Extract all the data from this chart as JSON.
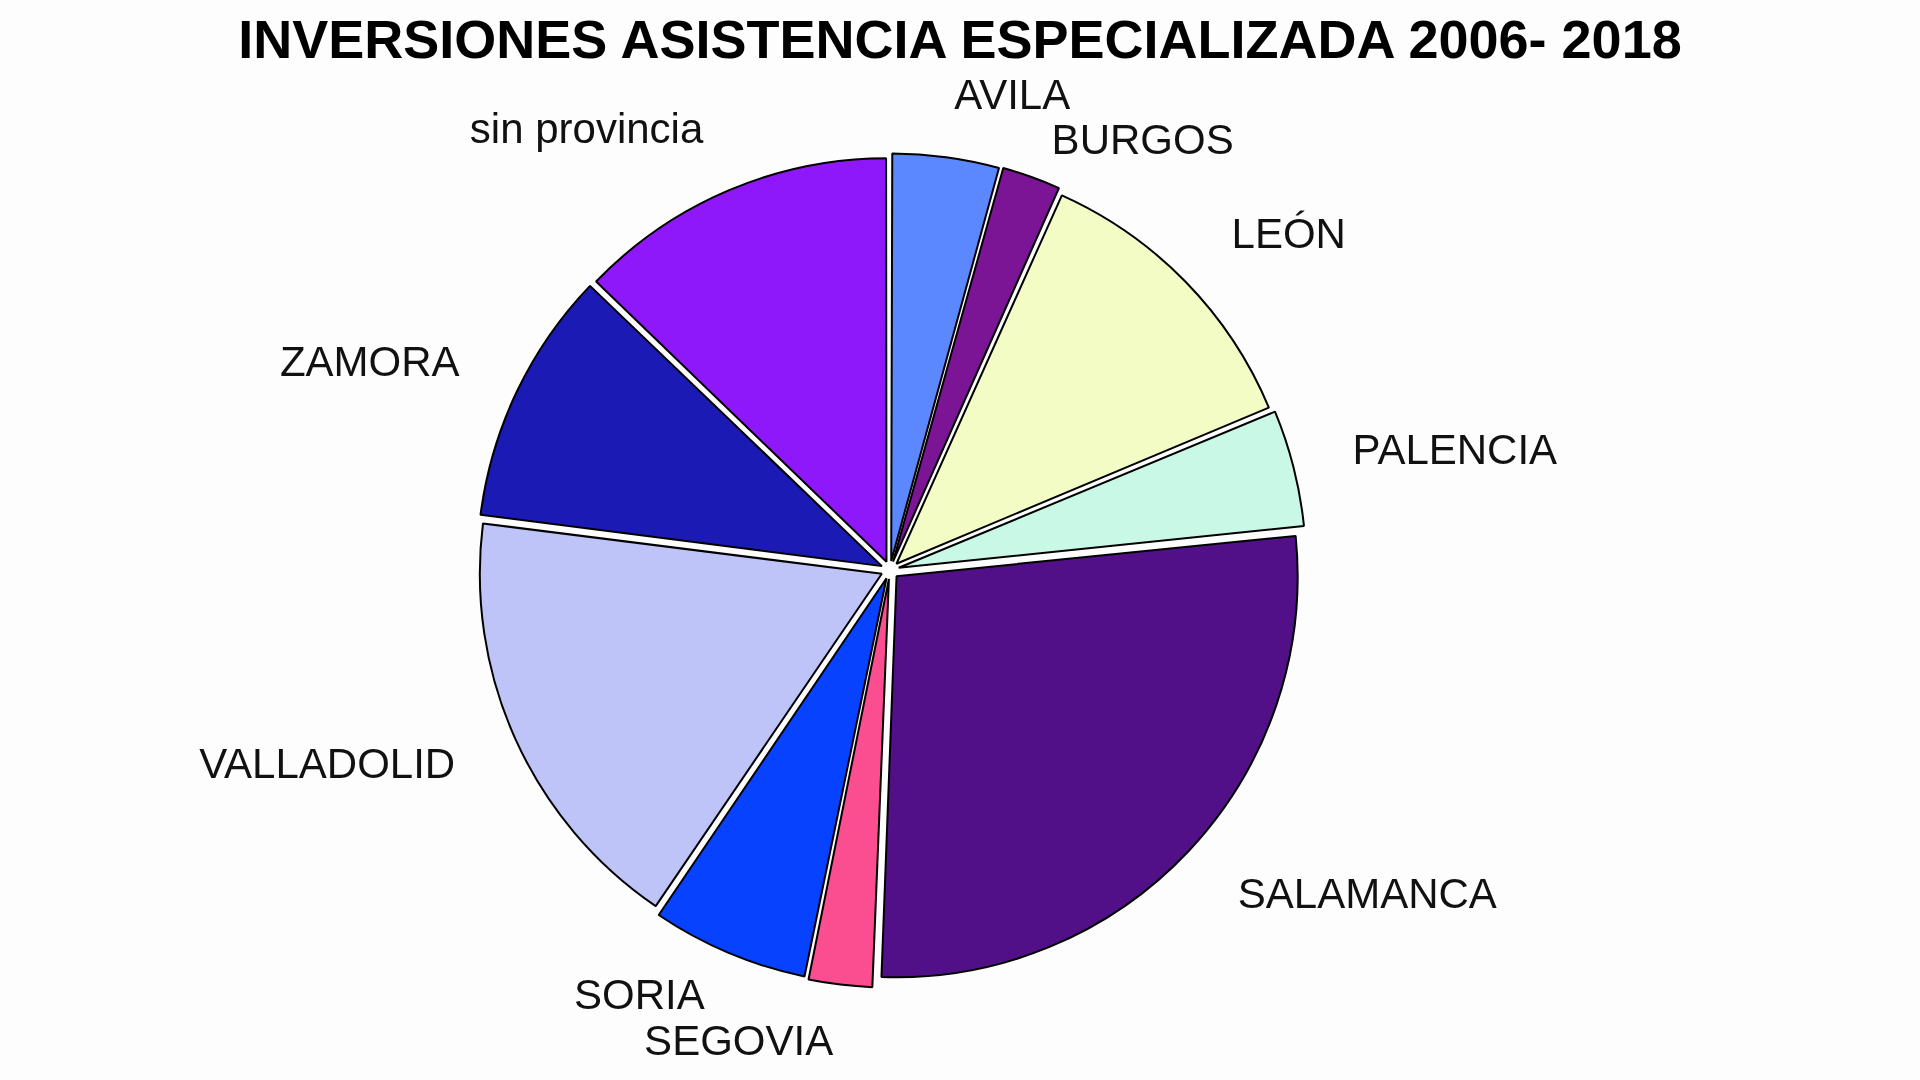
{
  "chart_data": {
    "type": "pie",
    "title": "INVERSIONES ASISTENCIA ESPECIALIZADA 2006- 2018",
    "categories": [
      "AVILA",
      "BURGOS",
      "LEÓN",
      "PALENCIA",
      "SALAMANCA",
      "SEGOVIA",
      "SORIA",
      "VALLADOLID",
      "ZAMORA",
      "sin provincia"
    ],
    "values": [
      4.3,
      2.4,
      12.0,
      4.7,
      27.2,
      2.6,
      6.3,
      17.5,
      10.2,
      12.8
    ],
    "colors": [
      "#5b87ff",
      "#7b1596",
      "#f2fcc4",
      "#c9f9e6",
      "#521088",
      "#fb4e90",
      "#0642ff",
      "#bec4f8",
      "#1c1ab4",
      "#8f18fb"
    ],
    "legend": false
  }
}
